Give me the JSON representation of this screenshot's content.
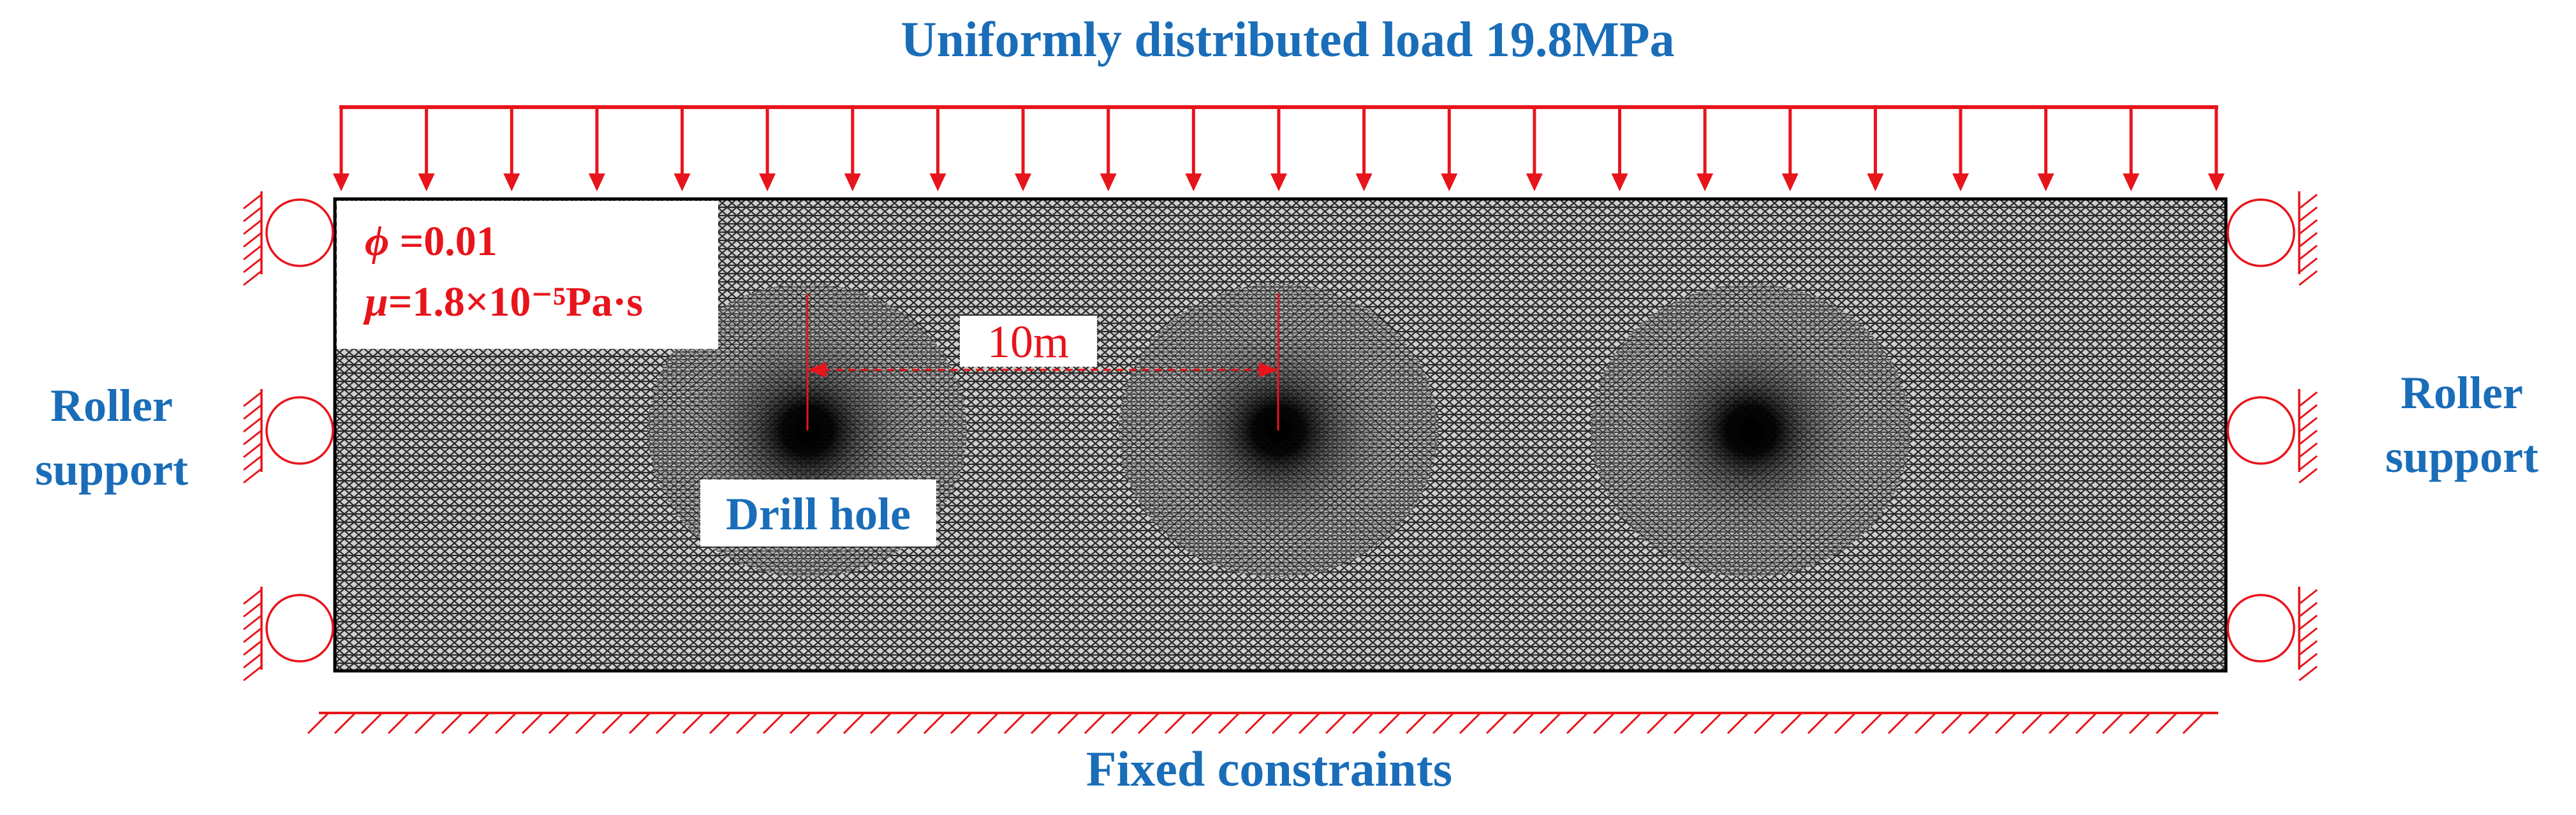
{
  "labels": {
    "load": "Uniformly distributed load 19.8MPa",
    "left_support_line1": "Roller",
    "left_support_line2": "support",
    "right_support_line1": "Roller",
    "right_support_line2": "support",
    "bottom": "Fixed constraints",
    "drill_hole": "Drill hole",
    "spacing": "10m"
  },
  "parameters": {
    "porosity_symbol": "ϕ",
    "porosity_value": " =0.01",
    "viscosity_symbol": "μ",
    "viscosity_value": "=1.8×10⁻⁵Pa·s"
  },
  "colors": {
    "load_arrows": "#e8141b",
    "supports": "#e8141b",
    "label_blue": "#1a6db8",
    "mesh_fill": "#cfcfcf",
    "mesh_line": "#2a2a2a",
    "outline": "#000000"
  },
  "load_arrow_count": 23,
  "drill_hole_count": 3
}
